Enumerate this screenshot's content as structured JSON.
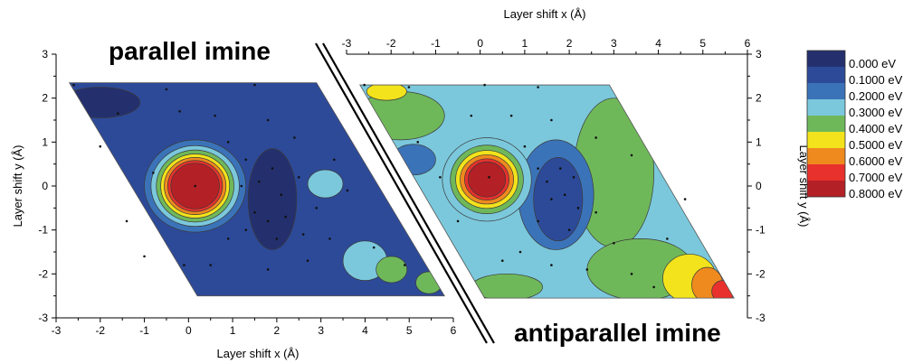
{
  "chart_data": [
    {
      "type": "heatmap",
      "panel": "left",
      "title": "parallel imine",
      "xlabel": "Layer shift x (Å)",
      "ylabel": "Layer shift y (Å)",
      "xlim": [
        -3,
        6
      ],
      "ylim": [
        -3,
        3
      ],
      "xticks": [
        "-3",
        "-2",
        "-1",
        "0",
        "1",
        "2",
        "3",
        "4",
        "5",
        "6"
      ],
      "yticks": [
        "-3",
        "-2",
        "-1",
        "0",
        "1",
        "2",
        "3"
      ],
      "x_axis_position": "bottom",
      "y_axis_position": "left",
      "domain_corners": [
        [
          -2.7,
          2.35
        ],
        [
          2.9,
          2.35
        ],
        [
          5.8,
          -2.5
        ],
        [
          0.2,
          -2.5
        ]
      ],
      "background_level": 1,
      "features": [
        {
          "level": 0,
          "shape": "ellipse",
          "cx": -2.0,
          "cy": 1.9,
          "rx": 0.9,
          "ry": 0.35
        },
        {
          "level": 0,
          "shape": "ellipse",
          "cx": -1.3,
          "cy": -1.7,
          "rx": 0.8,
          "ry": 0.45
        },
        {
          "level": 0,
          "shape": "ellipse",
          "cx": 1.9,
          "cy": -0.3,
          "rx": 0.55,
          "ry": 1.15
        },
        {
          "level": 3,
          "shape": "ellipse",
          "cx": 3.1,
          "cy": 0.05,
          "rx": 0.4,
          "ry": 0.32
        },
        {
          "level": 3,
          "shape": "ellipse",
          "cx": 4.0,
          "cy": -1.7,
          "rx": 0.5,
          "ry": 0.45
        },
        {
          "level": 4,
          "shape": "ellipse",
          "cx": 4.6,
          "cy": -1.9,
          "rx": 0.35,
          "ry": 0.3
        },
        {
          "level": 4,
          "shape": "ellipse",
          "cx": 5.45,
          "cy": -2.2,
          "rx": 0.3,
          "ry": 0.25
        },
        {
          "level": 2,
          "shape": "rings",
          "cx": 0.15,
          "cy": 0.0,
          "levels": [
            2,
            3,
            4,
            5,
            6,
            7,
            8
          ],
          "rx": [
            1.15,
            1.0,
            0.88,
            0.78,
            0.7,
            0.62,
            0.55
          ],
          "ry": [
            1.05,
            0.92,
            0.82,
            0.73,
            0.65,
            0.58,
            0.52
          ]
        }
      ],
      "sample_points": [
        [
          -2.6,
          2.3
        ],
        [
          -1.6,
          1.65
        ],
        [
          -0.5,
          2.2
        ],
        [
          1.5,
          2.3
        ],
        [
          -0.2,
          1.7
        ],
        [
          0.6,
          1.6
        ],
        [
          1.8,
          1.5
        ],
        [
          2.4,
          1.1
        ],
        [
          0.9,
          1.0
        ],
        [
          1.3,
          0.6
        ],
        [
          1.6,
          0.1
        ],
        [
          1.9,
          0.4
        ],
        [
          2.1,
          -0.2
        ],
        [
          1.5,
          -0.6
        ],
        [
          1.8,
          -0.8
        ],
        [
          2.2,
          -0.7
        ],
        [
          2.5,
          0.2
        ],
        [
          2.9,
          -0.5
        ],
        [
          3.6,
          -0.1
        ],
        [
          3.3,
          0.6
        ],
        [
          0.9,
          -1.2
        ],
        [
          1.3,
          -1.0
        ],
        [
          2.0,
          -1.2
        ],
        [
          1.8,
          -1.9
        ],
        [
          2.7,
          -1.7
        ],
        [
          3.2,
          -1.2
        ],
        [
          0.5,
          -1.8
        ],
        [
          -0.1,
          -1.8
        ],
        [
          4.2,
          -1.4
        ],
        [
          4.9,
          -1.8
        ],
        [
          -1.0,
          -1.6
        ],
        [
          -2.0,
          0.9
        ],
        [
          -0.8,
          0.3
        ],
        [
          -1.4,
          -0.8
        ],
        [
          1.2,
          0.0
        ],
        [
          2.6,
          -1.1
        ],
        [
          0.15,
          0.0
        ]
      ]
    },
    {
      "type": "heatmap",
      "panel": "right",
      "title": "antiparallel imine",
      "xlabel": "Layer shift x (Å)",
      "ylabel": "Layer shift y (Å)",
      "xlim": [
        -3,
        6
      ],
      "ylim": [
        -3,
        3
      ],
      "xticks": [
        "-3",
        "-2",
        "-1",
        "0",
        "1",
        "2",
        "3",
        "4",
        "5",
        "6"
      ],
      "yticks": [
        "-3",
        "-2",
        "-1",
        "0",
        "1",
        "2",
        "3"
      ],
      "x_axis_position": "top",
      "y_axis_position": "right",
      "domain_corners": [
        [
          -2.7,
          2.3
        ],
        [
          2.9,
          2.3
        ],
        [
          5.7,
          -2.55
        ],
        [
          0.1,
          -2.55
        ]
      ],
      "background_level": 3,
      "features": [
        {
          "level": 4,
          "shape": "ellipse",
          "cx": -1.8,
          "cy": 1.6,
          "rx": 1.0,
          "ry": 0.55
        },
        {
          "level": 4,
          "shape": "ellipse",
          "cx": 3.0,
          "cy": 0.3,
          "rx": 0.9,
          "ry": 1.7
        },
        {
          "level": 4,
          "shape": "ellipse",
          "cx": 3.6,
          "cy": -1.9,
          "rx": 1.2,
          "ry": 0.7
        },
        {
          "level": 4,
          "shape": "ellipse",
          "cx": 0.6,
          "cy": -2.3,
          "rx": 0.8,
          "ry": 0.3
        },
        {
          "level": 5,
          "shape": "ellipse",
          "cx": -2.1,
          "cy": 2.15,
          "rx": 0.45,
          "ry": 0.2
        },
        {
          "level": 5,
          "shape": "ellipse",
          "cx": 4.7,
          "cy": -2.1,
          "rx": 0.6,
          "ry": 0.55
        },
        {
          "level": 6,
          "shape": "ellipse",
          "cx": 5.1,
          "cy": -2.25,
          "rx": 0.35,
          "ry": 0.4
        },
        {
          "level": 7,
          "shape": "ellipse",
          "cx": 5.45,
          "cy": -2.4,
          "rx": 0.25,
          "ry": 0.25
        },
        {
          "level": 2,
          "shape": "ellipse",
          "cx": 1.7,
          "cy": -0.2,
          "rx": 0.85,
          "ry": 1.25
        },
        {
          "level": 1,
          "shape": "ellipse",
          "cx": 1.75,
          "cy": -0.3,
          "rx": 0.55,
          "ry": 0.95
        },
        {
          "level": 2,
          "shape": "ellipse",
          "cx": -1.5,
          "cy": 0.6,
          "rx": 0.5,
          "ry": 0.35
        },
        {
          "level": 3,
          "shape": "rings",
          "cx": 0.15,
          "cy": 0.15,
          "levels": [
            3,
            4,
            5,
            6,
            7,
            8
          ],
          "rx": [
            1.0,
            0.82,
            0.7,
            0.6,
            0.5,
            0.42
          ],
          "ry": [
            0.95,
            0.78,
            0.66,
            0.56,
            0.47,
            0.4
          ]
        }
      ],
      "sample_points": [
        [
          -2.6,
          2.3
        ],
        [
          -1.6,
          2.25
        ],
        [
          0.1,
          2.3
        ],
        [
          1.3,
          2.25
        ],
        [
          -0.2,
          1.6
        ],
        [
          0.7,
          1.6
        ],
        [
          1.6,
          1.5
        ],
        [
          2.6,
          1.1
        ],
        [
          3.4,
          0.7
        ],
        [
          1.0,
          0.9
        ],
        [
          1.3,
          0.4
        ],
        [
          1.5,
          0.1
        ],
        [
          1.8,
          0.4
        ],
        [
          2.1,
          0.2
        ],
        [
          1.6,
          -0.3
        ],
        [
          1.9,
          -0.2
        ],
        [
          2.2,
          -0.5
        ],
        [
          1.3,
          -0.8
        ],
        [
          2.0,
          -1.0
        ],
        [
          2.6,
          -0.6
        ],
        [
          3.0,
          -1.3
        ],
        [
          0.9,
          -1.5
        ],
        [
          1.6,
          -1.8
        ],
        [
          2.4,
          -1.9
        ],
        [
          3.4,
          -2.0
        ],
        [
          4.2,
          -1.2
        ],
        [
          4.6,
          -0.3
        ],
        [
          -1.4,
          1.0
        ],
        [
          -0.9,
          0.2
        ],
        [
          -0.5,
          -0.8
        ],
        [
          0.5,
          -1.7
        ],
        [
          3.9,
          -2.3
        ],
        [
          0.2,
          0.2
        ]
      ]
    }
  ],
  "legend": {
    "unit": "eV",
    "labels": [
      "0.000",
      "0.1000",
      "0.2000",
      "0.3000",
      "0.4000",
      "0.5000",
      "0.6000",
      "0.7000",
      "0.8000"
    ],
    "level_colors": [
      "#24306e",
      "#2d4a99",
      "#3b73b9",
      "#7bc8dc",
      "#6fb85a",
      "#f2e31c",
      "#ef8a1e",
      "#e8312c",
      "#b32026"
    ],
    "placement": "right"
  },
  "colors": {
    "contour_line": "#3a3a3a",
    "sample_point": "#111111",
    "divider": "#000000"
  }
}
